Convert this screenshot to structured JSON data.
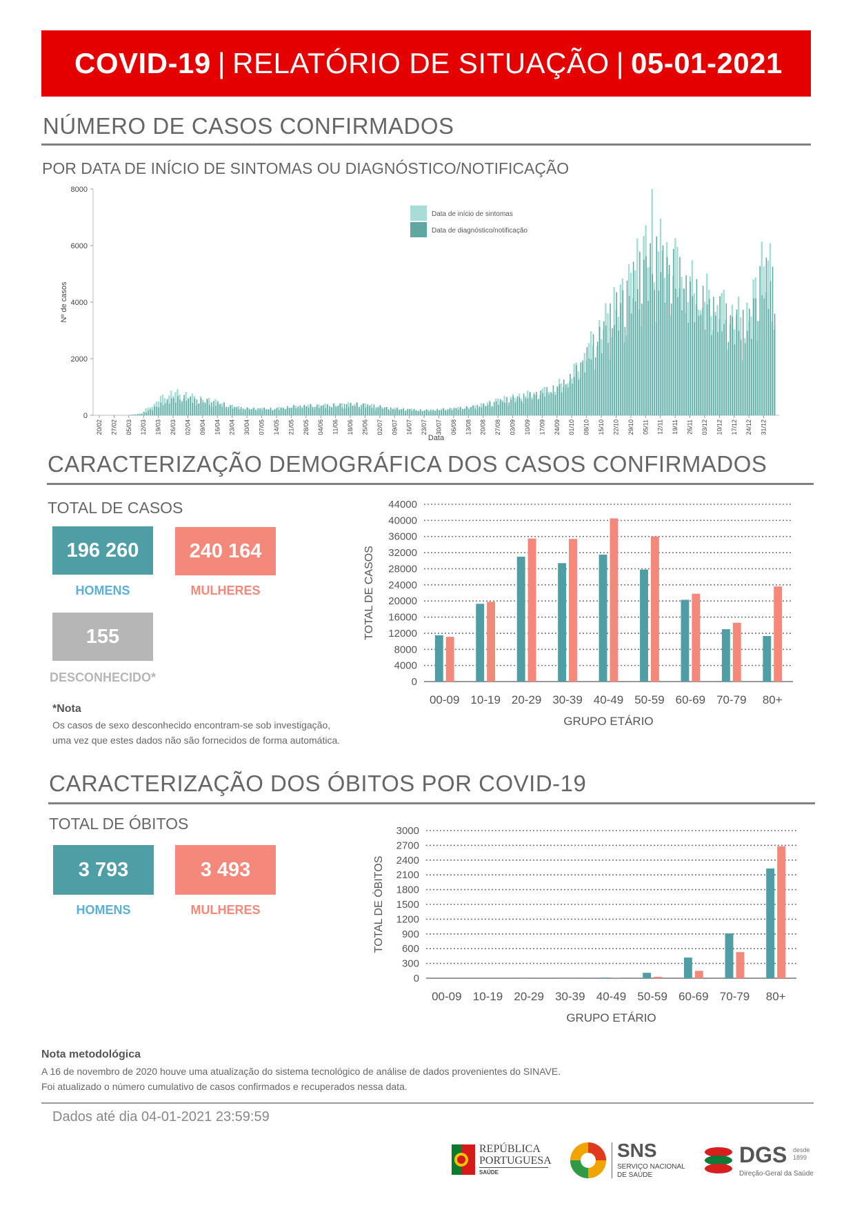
{
  "header": {
    "title_left": "COVID-19",
    "separator": "|",
    "title_mid": "RELATÓRIO DE SITUAÇÃO",
    "date": "05-01-2021",
    "bg_color": "#e50000"
  },
  "section_cases": {
    "title": "NÚMERO DE CASOS CONFIRMADOS",
    "subtitle": "POR DATA DE INÍCIO DE SINTOMAS OU DIAGNÓSTICO/NOTIFICAÇÃO"
  },
  "section_demo": {
    "title": "CARACTERIZAÇÃO DEMOGRÁFICA DOS CASOS CONFIRMADOS",
    "total_label": "TOTAL DE CASOS",
    "men_value": "196 260",
    "men_label": "HOMENS",
    "women_value": "240 164",
    "women_label": "MULHERES",
    "unknown_value": "155",
    "unknown_label": "DESCONHECIDO*",
    "note_title": "*Nota",
    "note_line1": "Os casos de sexo desconhecido encontram-se sob investigação,",
    "note_line2": "uma vez que estes dados não são fornecidos de forma automática."
  },
  "section_deaths": {
    "title": "CARACTERIZAÇÃO DOS ÓBITOS POR COVID-19",
    "total_label": "TOTAL DE ÓBITOS",
    "men_value": "3 793",
    "men_label": "HOMENS",
    "women_value": "3 493",
    "women_label": "MULHERES"
  },
  "footer": {
    "method_title": "Nota metodológica",
    "method_line1": "A 16 de novembro de 2020 houve uma atualização do sistema tecnológico de análise de dados provenientes do SINAVE.",
    "method_line2": "Foi atualizado o número cumulativo de casos confirmados e recuperados nessa data.",
    "data_until": "Dados até dia 04-01-2021 23:59:59",
    "logo_republica_1": "REPÚBLICA",
    "logo_republica_2": "PORTUGUESA",
    "logo_republica_3": "SAÚDE",
    "logo_sns": "SNS",
    "logo_sns_sub1": "SERVIÇO NACIONAL",
    "logo_sns_sub2": "DE SAÚDE",
    "logo_dgs": "DGS",
    "logo_dgs_desde": "desde",
    "logo_dgs_year": "1899",
    "logo_dgs_sub": "Direção-Geral da Saúde"
  },
  "colors": {
    "men": "#4f9ea5",
    "women": "#f4887a",
    "unknown": "#b6b6b6",
    "men_label": "#5ab0d6",
    "symptoms": "#a8ddd7",
    "notification": "#5fa8a1"
  },
  "chart_data": [
    {
      "type": "bar",
      "ylabel": "Nº de casos",
      "xlabel": "Data",
      "ylim": [
        0,
        8000
      ],
      "yticks": [
        0,
        2000,
        4000,
        6000,
        8000
      ],
      "xtick_labels": [
        "20/02",
        "27/02",
        "05/03",
        "12/03",
        "19/03",
        "26/03",
        "02/04",
        "09/04",
        "16/04",
        "23/04",
        "30/04",
        "07/05",
        "14/05",
        "21/05",
        "28/05",
        "04/06",
        "11/06",
        "18/06",
        "25/06",
        "02/07",
        "09/07",
        "16/07",
        "23/07",
        "30/07",
        "06/08",
        "13/08",
        "20/08",
        "27/08",
        "03/09",
        "10/09",
        "17/09",
        "24/09",
        "01/10",
        "08/10",
        "15/10",
        "22/10",
        "29/10",
        "05/11",
        "12/11",
        "19/11",
        "26/11",
        "03/12",
        "10/12",
        "17/12",
        "24/12",
        "31/12"
      ],
      "legend": [
        "Data de início de sintomas",
        "Data de diagnóstico/notificação"
      ],
      "legend_position": "top-center",
      "weekly_symptoms_approx": [
        0,
        0,
        0,
        80,
        500,
        800,
        700,
        550,
        480,
        320,
        230,
        230,
        220,
        290,
        330,
        330,
        350,
        380,
        370,
        300,
        230,
        210,
        170,
        190,
        230,
        270,
        350,
        500,
        600,
        700,
        800,
        950,
        1300,
        2100,
        2900,
        3700,
        4400,
        5600,
        5700,
        5400,
        4600,
        4200,
        3900,
        3500,
        3300,
        5000
      ],
      "weekly_notification_approx": [
        0,
        0,
        0,
        50,
        300,
        550,
        600,
        500,
        430,
        300,
        230,
        230,
        220,
        280,
        320,
        320,
        340,
        370,
        360,
        300,
        230,
        210,
        170,
        190,
        230,
        260,
        330,
        450,
        560,
        650,
        760,
        900,
        1200,
        1900,
        2700,
        3500,
        4200,
        5100,
        5200,
        4900,
        4200,
        3800,
        3500,
        3200,
        3000,
        4600
      ],
      "peak_symptoms": 8000
    },
    {
      "type": "bar",
      "categories": [
        "00-09",
        "10-19",
        "20-29",
        "30-39",
        "40-49",
        "50-59",
        "60-69",
        "70-79",
        "80+"
      ],
      "series": [
        {
          "values": [
            11500,
            19300,
            31000,
            29400,
            31500,
            27800,
            20300,
            13000,
            11300
          ]
        },
        {
          "values": [
            11100,
            19800,
            35500,
            35400,
            40500,
            36000,
            21800,
            14600,
            23600
          ]
        }
      ],
      "xlabel": "GRUPO ETÁRIO",
      "ylabel": "TOTAL DE CASOS",
      "ylim": [
        0,
        44000
      ],
      "yticks": [
        0,
        4000,
        8000,
        12000,
        16000,
        20000,
        24000,
        28000,
        32000,
        36000,
        40000,
        44000
      ],
      "grid": true
    },
    {
      "type": "bar",
      "categories": [
        "00-09",
        "10-19",
        "20-29",
        "30-39",
        "40-49",
        "50-59",
        "60-69",
        "70-79",
        "80+"
      ],
      "series": [
        {
          "values": [
            0,
            0,
            1,
            2,
            12,
            110,
            420,
            910,
            2230
          ]
        },
        {
          "values": [
            0,
            0,
            0,
            1,
            5,
            30,
            150,
            530,
            2680
          ]
        }
      ],
      "xlabel": "GRUPO ETÁRIO",
      "ylabel": "TOTAL DE ÓBITOS",
      "ylim": [
        0,
        3000
      ],
      "yticks": [
        0,
        300,
        600,
        900,
        1200,
        1500,
        1800,
        2100,
        2400,
        2700,
        3000
      ],
      "grid": true
    }
  ]
}
